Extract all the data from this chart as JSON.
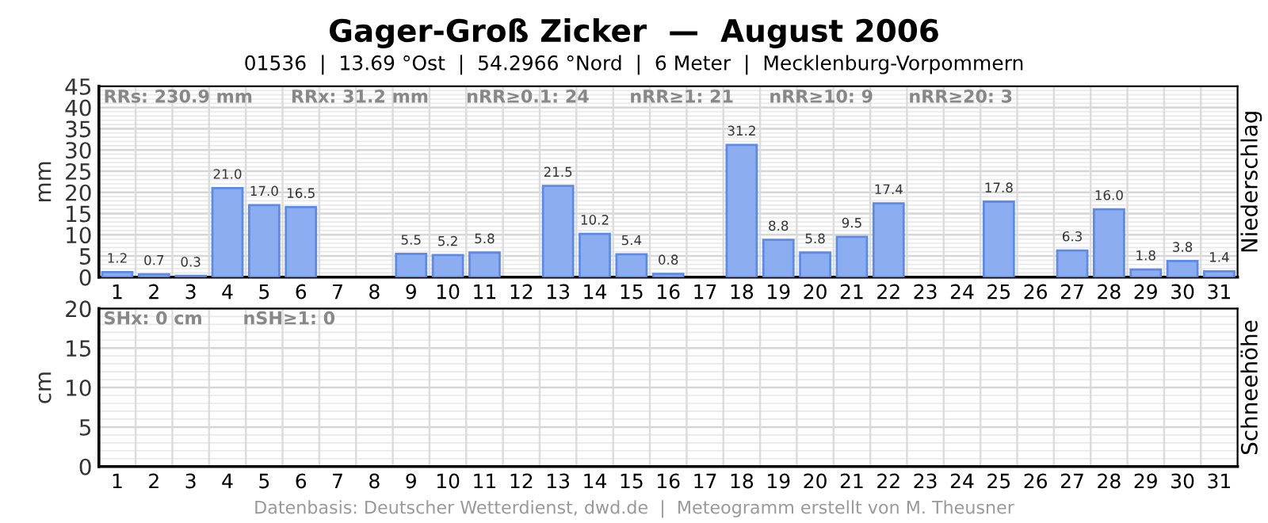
{
  "chart_data": [
    {
      "type": "bar",
      "title": "Gager-Groß Zicker  —  August 2006",
      "subtitle": "01536  |  13.69 °Ost  |  54.2966 °Nord  |  6 Meter  |  Mecklenburg-Vorpommern",
      "ylabel": "mm",
      "y2label": "Niederschlag",
      "categories": [
        "1",
        "2",
        "3",
        "4",
        "5",
        "6",
        "7",
        "8",
        "9",
        "10",
        "11",
        "12",
        "13",
        "14",
        "15",
        "16",
        "17",
        "18",
        "19",
        "20",
        "21",
        "22",
        "23",
        "24",
        "25",
        "26",
        "27",
        "28",
        "29",
        "30",
        "31"
      ],
      "values": [
        1.2,
        0.7,
        0.3,
        21.0,
        17.0,
        16.5,
        null,
        null,
        5.5,
        5.2,
        5.8,
        null,
        21.5,
        10.2,
        5.4,
        0.8,
        null,
        31.2,
        8.8,
        5.8,
        9.5,
        17.4,
        null,
        null,
        17.8,
        null,
        6.3,
        16.0,
        1.8,
        3.8,
        1.4
      ],
      "value_labels": [
        "1.2",
        "0.7",
        "0.3",
        "21.0",
        "17.0",
        "16.5",
        null,
        null,
        "5.5",
        "5.2",
        "5.8",
        null,
        "21.5",
        "10.2",
        "5.4",
        "0.8",
        null,
        "31.2",
        "8.8",
        "5.8",
        "9.5",
        "17.4",
        null,
        null,
        "17.8",
        null,
        "6.3",
        "16.0",
        "1.8",
        "3.8",
        "1.4"
      ],
      "color": "#8cadf0",
      "ylim": [
        0,
        45
      ],
      "yticks": [
        0,
        5,
        10,
        15,
        20,
        25,
        30,
        35,
        40,
        45
      ],
      "grid": true,
      "annotations": [
        "RRs: 230.9 mm",
        "RRx: 31.2 mm",
        "nRR≥0.1: 24",
        "nRR≥1: 21",
        "nRR≥10: 9",
        "nRR≥20: 3"
      ]
    },
    {
      "type": "bar",
      "ylabel": "cm",
      "y2label": "Schneehöhe",
      "categories": [
        "1",
        "2",
        "3",
        "4",
        "5",
        "6",
        "7",
        "8",
        "9",
        "10",
        "11",
        "12",
        "13",
        "14",
        "15",
        "16",
        "17",
        "18",
        "19",
        "20",
        "21",
        "22",
        "23",
        "24",
        "25",
        "26",
        "27",
        "28",
        "29",
        "30",
        "31"
      ],
      "values": [
        null,
        null,
        null,
        null,
        null,
        null,
        null,
        null,
        null,
        null,
        null,
        null,
        null,
        null,
        null,
        null,
        null,
        null,
        null,
        null,
        null,
        null,
        null,
        null,
        null,
        null,
        null,
        null,
        null,
        null,
        null
      ],
      "ylim": [
        0,
        20
      ],
      "yticks": [
        0,
        5,
        10,
        15,
        20
      ],
      "grid": true,
      "annotations": [
        "SHx: 0 cm",
        "nSH≥1: 0",
        "Datenbasis: Deutscher Wetterdienst, dwd.de  |  Meteogramm erstellt von M. Theusner"
      ]
    }
  ]
}
